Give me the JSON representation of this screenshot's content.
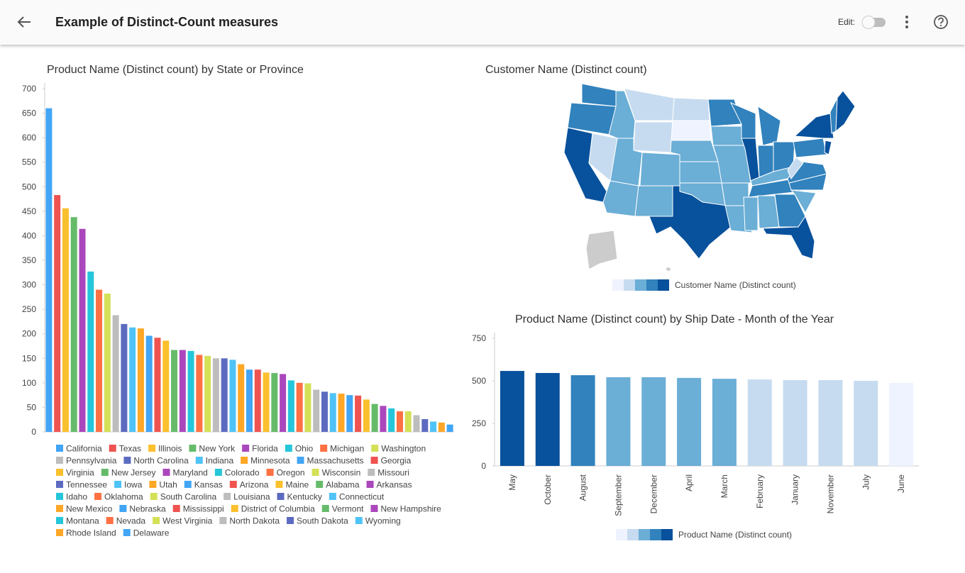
{
  "header": {
    "title": "Example of Distinct-Count measures",
    "edit_label": "Edit:"
  },
  "chart_data": [
    {
      "type": "bar",
      "title": "Product Name (Distinct count) by State or Province",
      "categories": [
        "California",
        "Texas",
        "Illinois",
        "New York",
        "Florida",
        "Ohio",
        "Michigan",
        "Washington",
        "Pennsylvania",
        "North Carolina",
        "Indiana",
        "Minnesota",
        "Massachusetts",
        "Georgia",
        "Virginia",
        "New Jersey",
        "Maryland",
        "Colorado",
        "Oregon",
        "Wisconsin",
        "Missouri",
        "Tennessee",
        "Iowa",
        "Utah",
        "Kansas",
        "Arizona",
        "Maine",
        "Alabama",
        "Arkansas",
        "Idaho",
        "Oklahoma",
        "South Carolina",
        "Louisiana",
        "Kentucky",
        "Connecticut",
        "New Mexico",
        "Nebraska",
        "Mississippi",
        "District of Columbia",
        "Vermont",
        "New Hampshire",
        "Montana",
        "Nevada",
        "West Virginia",
        "North Dakota",
        "South Dakota",
        "Wyoming",
        "Rhode Island",
        "Delaware"
      ],
      "values": [
        660,
        483,
        456,
        438,
        414,
        327,
        290,
        282,
        238,
        220,
        213,
        211,
        196,
        192,
        186,
        167,
        167,
        165,
        157,
        155,
        150,
        150,
        147,
        138,
        127,
        127,
        121,
        120,
        118,
        105,
        100,
        99,
        86,
        82,
        79,
        78,
        75,
        74,
        66,
        57,
        53,
        48,
        42,
        42,
        34,
        26,
        21,
        19,
        15
      ],
      "colors": [
        "#42a5f5",
        "#ef5350",
        "#fbc02d",
        "#66bb6a",
        "#ab47bc",
        "#26c6da",
        "#ff7043",
        "#d4e157",
        "#bdbdbd",
        "#5c6bc0",
        "#4fc3f7",
        "#ffa726"
      ],
      "ylim": [
        0,
        700
      ],
      "yticks": [
        0,
        50,
        100,
        150,
        200,
        250,
        300,
        350,
        400,
        450,
        500,
        550,
        600,
        650,
        700
      ],
      "legend": "bottom"
    },
    {
      "type": "map",
      "title": "Customer Name (Distinct count)",
      "legend_label": "Customer Name (Distinct count)",
      "scale_colors": [
        "#eff3ff",
        "#c6dbef",
        "#6baed6",
        "#3182bd",
        "#08519c"
      ]
    },
    {
      "type": "bar",
      "title": "Product Name (Distinct count) by Ship Date - Month of the Year",
      "categories": [
        "May",
        "October",
        "August",
        "September",
        "December",
        "April",
        "March",
        "February",
        "January",
        "November",
        "July",
        "June"
      ],
      "values": [
        558,
        546,
        533,
        521,
        521,
        517,
        512,
        508,
        504,
        504,
        500,
        488
      ],
      "colors": [
        "#08519c",
        "#08519c",
        "#3182bd",
        "#6baed6",
        "#6baed6",
        "#6baed6",
        "#6baed6",
        "#c6dbef",
        "#c6dbef",
        "#c6dbef",
        "#c6dbef",
        "#eff3ff"
      ],
      "ylim": [
        0,
        750
      ],
      "yticks": [
        0,
        250,
        500,
        750
      ],
      "legend_label": "Product Name (Distinct count)",
      "scale_colors": [
        "#eff3ff",
        "#c6dbef",
        "#6baed6",
        "#3182bd",
        "#08519c"
      ]
    }
  ]
}
